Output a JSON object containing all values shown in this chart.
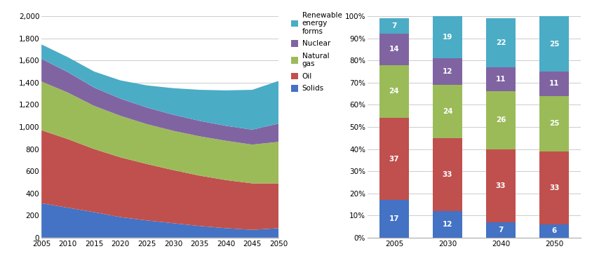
{
  "area_years": [
    2005,
    2010,
    2015,
    2020,
    2025,
    2030,
    2035,
    2040,
    2045,
    2050
  ],
  "solids": [
    310,
    270,
    230,
    185,
    155,
    130,
    105,
    85,
    70,
    85
  ],
  "oil": [
    660,
    620,
    570,
    540,
    510,
    480,
    455,
    435,
    420,
    405
  ],
  "natgas": [
    440,
    420,
    390,
    375,
    360,
    355,
    355,
    355,
    350,
    375
  ],
  "nuclear": [
    205,
    185,
    165,
    155,
    150,
    145,
    140,
    135,
    135,
    165
  ],
  "renew": [
    130,
    135,
    145,
    165,
    200,
    240,
    280,
    320,
    360,
    385
  ],
  "bar_years": [
    2005,
    2030,
    2040,
    2050
  ],
  "bar_solids": [
    17,
    12,
    7,
    6
  ],
  "bar_oil": [
    37,
    33,
    33,
    33
  ],
  "bar_natgas": [
    24,
    24,
    26,
    25
  ],
  "bar_nuclear": [
    14,
    12,
    11,
    11
  ],
  "bar_renew": [
    7,
    19,
    22,
    25
  ],
  "color_solids": "#4472c4",
  "color_oil": "#c0504d",
  "color_natgas": "#9bbb59",
  "color_nuclear": "#8064a2",
  "color_renew": "#4bacc6",
  "legend_labels": [
    "Renewable\nenergy\nforms",
    "Nuclear",
    "Natural\ngas",
    "Oil",
    "Solids"
  ],
  "ylim_area": [
    0,
    2000
  ],
  "yticks_area": [
    0,
    200,
    400,
    600,
    800,
    1000,
    1200,
    1400,
    1600,
    1800,
    2000
  ],
  "bar_width": 0.55
}
